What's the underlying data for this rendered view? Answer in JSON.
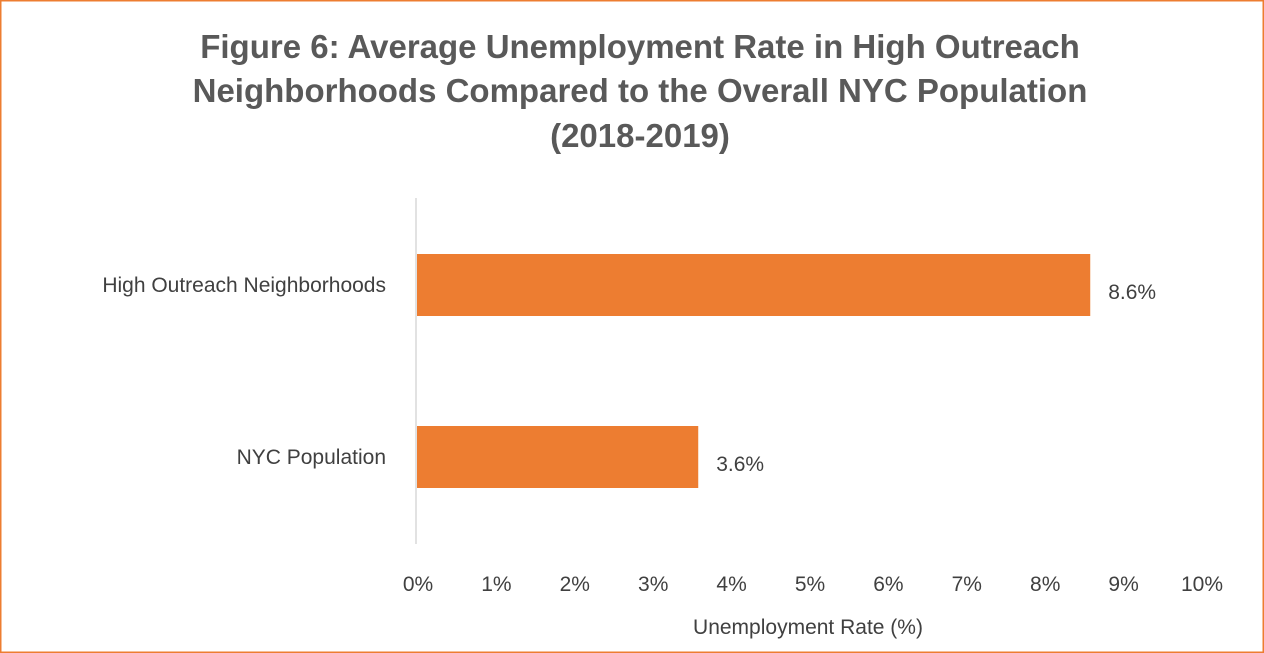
{
  "colors": {
    "border": "#ED7D31",
    "bar": "#ED7D31",
    "axis_line": "#D9D9D9",
    "text": "#404040",
    "title": "#595959"
  },
  "chart_data": {
    "type": "bar",
    "orientation": "horizontal",
    "title_lines": [
      "Figure 6: Average Unemployment Rate in High Outreach",
      "Neighborhoods Compared to the Overall NYC Population",
      "(2018-2019)"
    ],
    "categories": [
      "High Outreach Neighborhoods",
      "NYC Population"
    ],
    "values": [
      8.6,
      3.6
    ],
    "data_labels": [
      "8.6%",
      "3.6%"
    ],
    "xlabel": "Unemployment Rate (%)",
    "ylabel": "",
    "xlim": [
      0,
      10
    ],
    "ticks": [
      0,
      1,
      2,
      3,
      4,
      5,
      6,
      7,
      8,
      9,
      10
    ],
    "tick_labels": [
      "0%",
      "1%",
      "2%",
      "3%",
      "4%",
      "5%",
      "6%",
      "7%",
      "8%",
      "9%",
      "10%"
    ],
    "grid": false,
    "legend": "none"
  }
}
